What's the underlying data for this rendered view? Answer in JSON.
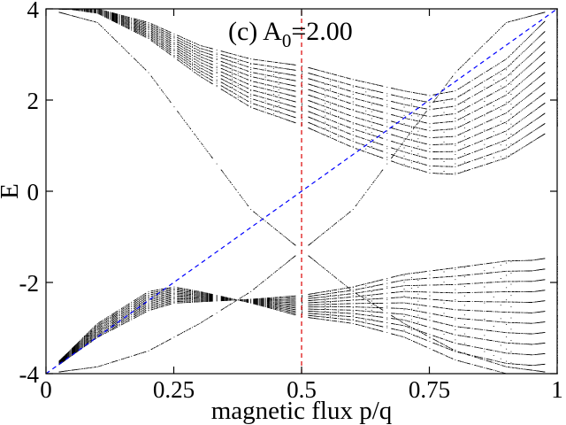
{
  "chart_data": {
    "type": "scatter",
    "title": "(c) A",
    "title_subscript": "0",
    "title_suffix": "=2.00",
    "xlabel": "magnetic flux p/q",
    "ylabel": "E",
    "xlim": [
      0,
      1
    ],
    "ylim": [
      -4,
      4
    ],
    "x_ticks": [
      0,
      0.25,
      0.5,
      0.75,
      1
    ],
    "x_tick_labels": [
      "0",
      "0.25",
      "0.5",
      "0.75",
      "1"
    ],
    "y_ticks": [
      -4,
      -2,
      0,
      2,
      4
    ],
    "y_tick_labels": [
      "-4",
      "-2",
      "0",
      "2",
      "4"
    ],
    "grid": false,
    "legend": "none",
    "point_color": "#000000",
    "reference_lines": [
      {
        "kind": "line",
        "from": [
          0,
          -4
        ],
        "to": [
          1,
          4
        ],
        "color": "#0000ff",
        "dash": "dashed"
      },
      {
        "kind": "vertical",
        "x": 0.5,
        "color": "#dd0000",
        "dash": "dashed"
      }
    ],
    "spectrum": {
      "description_free": true,
      "max_denominator": 40,
      "outer_band_top": [
        [
          0,
          4.0
        ],
        [
          0.05,
          4.05
        ],
        [
          0.1,
          4.0
        ],
        [
          0.2,
          3.7
        ],
        [
          0.3,
          3.2
        ],
        [
          0.4,
          2.9
        ],
        [
          0.5,
          2.75
        ],
        [
          0.6,
          2.45
        ],
        [
          0.7,
          2.2
        ],
        [
          0.75,
          2.1
        ],
        [
          0.8,
          2.2
        ],
        [
          0.9,
          2.9
        ],
        [
          1,
          4.0
        ]
      ],
      "outer_band_bottom": [
        [
          0,
          -4.0
        ],
        [
          0.1,
          -2.9
        ],
        [
          0.2,
          -2.2
        ],
        [
          0.25,
          -2.1
        ],
        [
          0.3,
          -2.2
        ],
        [
          0.4,
          -2.45
        ],
        [
          0.5,
          -2.75
        ],
        [
          0.6,
          -2.9
        ],
        [
          0.7,
          -3.2
        ],
        [
          0.8,
          -3.7
        ],
        [
          0.9,
          -4.0
        ],
        [
          0.95,
          -4.05
        ],
        [
          1,
          -4.0
        ]
      ],
      "crossing_band": [
        [
          0,
          4.0
        ],
        [
          0.1,
          3.7
        ],
        [
          0.2,
          2.6
        ],
        [
          0.3,
          1.1
        ],
        [
          0.4,
          -0.4
        ],
        [
          0.5,
          -1.3
        ],
        [
          0.6,
          -2.2
        ],
        [
          0.7,
          -2.9
        ],
        [
          0.8,
          -3.5
        ],
        [
          0.9,
          -3.85
        ],
        [
          1,
          -4.0
        ]
      ],
      "crossing_band_mirror": [
        [
          0,
          -4.0
        ],
        [
          0.1,
          -3.85
        ],
        [
          0.2,
          -3.5
        ],
        [
          0.3,
          -2.9
        ],
        [
          0.4,
          -2.2
        ],
        [
          0.5,
          -1.3
        ],
        [
          0.6,
          -0.4
        ],
        [
          0.7,
          1.1
        ],
        [
          0.8,
          2.6
        ],
        [
          0.9,
          3.7
        ],
        [
          1,
          4.0
        ]
      ]
    }
  }
}
